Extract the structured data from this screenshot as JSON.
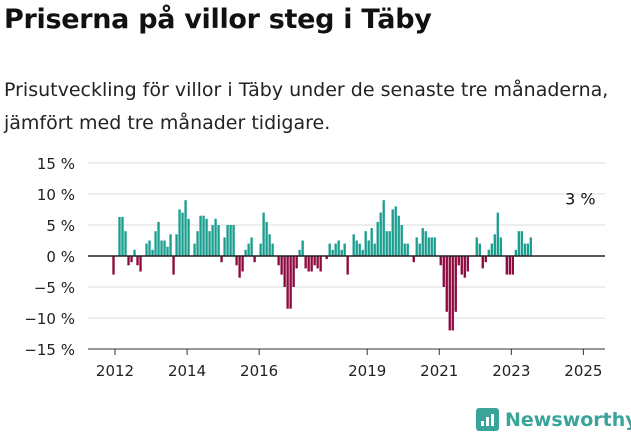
{
  "header": {
    "title": "Priserna på villor steg i Täby",
    "subtitle": "Prisutveckling för villor i Täby under de senaste tre månaderna, jämfört med tre månader tidigare."
  },
  "brand": {
    "name": "Newsworthy"
  },
  "colors": {
    "positive": "#1a9e8f",
    "negative": "#8c0a3e",
    "grid": "#dcdcdc",
    "zero": "#222222"
  },
  "chart_data": {
    "type": "bar",
    "title": "Priserna på villor steg i Täby",
    "xlabel": "",
    "ylabel": "",
    "x_start": 2011.958,
    "x_step": 0.08333,
    "xlim": [
      2011.25,
      2025.6
    ],
    "ylim": [
      -15,
      15
    ],
    "y_ticks": [
      15,
      10,
      5,
      0,
      -5,
      -10,
      -15
    ],
    "y_tick_labels": [
      "15 %",
      "10 %",
      "5 %",
      "0 %",
      "−5 %",
      "−10 %",
      "−15 %"
    ],
    "x_ticks": [
      2012,
      2014,
      2016,
      2019,
      2021,
      2023,
      2025
    ],
    "x_tick_labels": [
      "2012",
      "2014",
      "2016",
      "2019",
      "2021",
      "2023",
      "2025"
    ],
    "annotation": {
      "text": "3 %",
      "x": 2025.0,
      "y": 3
    },
    "values": [
      -3,
      0,
      6.3,
      6.3,
      4,
      -1.5,
      -1,
      1,
      -1.5,
      -2.5,
      0,
      2,
      2.5,
      1,
      4,
      5.5,
      2.5,
      2.5,
      1.5,
      3.5,
      -3,
      3.5,
      7.5,
      7,
      9,
      6,
      0,
      2,
      4,
      6.5,
      6.5,
      6,
      4,
      5,
      6,
      5,
      -1,
      3,
      5,
      5,
      5,
      -1.5,
      -3.5,
      -2.5,
      1,
      2,
      3,
      -1,
      0,
      2,
      7,
      5.5,
      3.5,
      2,
      0,
      -1.5,
      -3,
      -5,
      -8.5,
      -8.5,
      -5,
      -2,
      1,
      2.5,
      -2,
      -2.5,
      -2.5,
      -1.5,
      -2,
      -2.5,
      0,
      -0.5,
      2,
      1,
      2,
      2.5,
      1,
      2,
      -3,
      0,
      3.5,
      2.5,
      2,
      1,
      4,
      2.5,
      4.5,
      2,
      5.5,
      7,
      9,
      4,
      4,
      7.5,
      8,
      6.5,
      5,
      2,
      2,
      0,
      -1,
      3,
      2,
      4.5,
      4,
      3,
      3,
      3,
      0,
      -1.5,
      -5,
      -9,
      -12,
      -12,
      -9,
      -1.5,
      -3,
      -3.5,
      -2.5,
      0,
      0,
      3,
      2,
      -2,
      -1,
      1,
      2,
      3.5,
      7,
      3,
      0,
      -3,
      -3,
      -3,
      1,
      4,
      4,
      2,
      2,
      3
    ]
  }
}
